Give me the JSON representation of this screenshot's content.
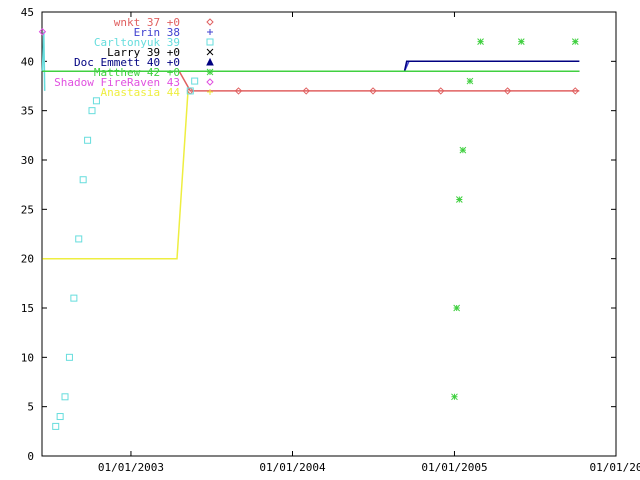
{
  "chart_data": {
    "type": "line",
    "title": "",
    "xlabel": "",
    "ylabel": "",
    "grid": false,
    "legend_position": "top-center",
    "ylim": [
      0,
      45
    ],
    "xlim": [
      "2002-06-14",
      "2006-01-01"
    ],
    "y_ticks": [
      0,
      5,
      10,
      15,
      20,
      25,
      30,
      35,
      40,
      45
    ],
    "x_ticks": [
      {
        "date": "2003-01-01",
        "label": "01/01/2003"
      },
      {
        "date": "2004-01-01",
        "label": "01/01/2004"
      },
      {
        "date": "2005-01-01",
        "label": "01/01/2005"
      },
      {
        "date": "2006-01-01",
        "label": "01/01/20"
      }
    ],
    "series": [
      {
        "name": "wnkt 37 +0",
        "color": "#e06060",
        "marker": "diamond",
        "points": [
          [
            "2002-06-15",
            39
          ],
          [
            "2003-04-20",
            39
          ],
          [
            "2003-05-15",
            37
          ],
          [
            "2005-10-10",
            37
          ]
        ],
        "markers": [
          [
            "2003-05-15",
            37
          ],
          [
            "2003-09-01",
            37
          ],
          [
            "2004-02-01",
            37
          ],
          [
            "2004-07-01",
            37
          ],
          [
            "2004-12-01",
            37
          ],
          [
            "2005-05-01",
            37
          ],
          [
            "2005-10-01",
            37
          ]
        ]
      },
      {
        "name": "Erin 38",
        "color": "#4040d0",
        "marker": "plus",
        "points": [
          [
            "2002-06-15",
            39
          ],
          [
            "2004-09-10",
            39
          ],
          [
            "2004-09-20",
            40
          ],
          [
            "2005-10-10",
            40
          ]
        ],
        "markers": []
      },
      {
        "name": "Carltonyuk 39",
        "color": "#66dddd",
        "marker": "square",
        "points": [
          [
            "2002-06-15",
            39
          ],
          [
            "2002-06-18",
            43
          ],
          [
            "2002-06-20",
            37
          ]
        ],
        "markers": [
          [
            "2002-07-15",
            3
          ],
          [
            "2002-07-25",
            4
          ],
          [
            "2002-08-05",
            6
          ],
          [
            "2002-08-15",
            10
          ],
          [
            "2002-08-25",
            16
          ],
          [
            "2002-09-05",
            22
          ],
          [
            "2002-09-15",
            28
          ],
          [
            "2002-09-25",
            32
          ],
          [
            "2002-10-05",
            35
          ],
          [
            "2002-10-15",
            36
          ],
          [
            "2003-05-15",
            37
          ],
          [
            "2003-05-25",
            38
          ]
        ]
      },
      {
        "name": "Larry 39 +0",
        "color": "#000000",
        "marker": "x",
        "points": [
          [
            "2002-06-15",
            39
          ],
          [
            "2005-10-10",
            39
          ]
        ],
        "markers": []
      },
      {
        "name": "Doc Emmett 40 +0",
        "color": "#000080",
        "marker": "triangle",
        "points": [
          [
            "2002-06-15",
            39
          ],
          [
            "2004-09-10",
            39
          ],
          [
            "2004-09-15",
            40
          ],
          [
            "2005-10-10",
            40
          ]
        ],
        "markers": []
      },
      {
        "name": "Matthew 42 +0",
        "color": "#40d040",
        "marker": "asterisk",
        "points": [
          [
            "2002-06-15",
            39
          ],
          [
            "2005-10-10",
            39
          ]
        ],
        "markers": [
          [
            "2005-01-01",
            6
          ],
          [
            "2005-01-06",
            15
          ],
          [
            "2005-01-12",
            26
          ],
          [
            "2005-01-20",
            31
          ],
          [
            "2005-02-05",
            38
          ],
          [
            "2005-03-01",
            42
          ],
          [
            "2005-06-01",
            42
          ],
          [
            "2005-10-01",
            42
          ]
        ]
      },
      {
        "name": "Shadow FireRaven 43",
        "color": "#e050e0",
        "marker": "diamond",
        "points": [
          [
            "2002-06-15",
            43
          ]
        ],
        "markers": [
          [
            "2002-06-15",
            43
          ]
        ]
      },
      {
        "name": "Anastasia 44",
        "color": "#eeee40",
        "marker": "plus",
        "points": [
          [
            "2002-06-15",
            20
          ],
          [
            "2003-04-15",
            20
          ],
          [
            "2003-05-10",
            37
          ]
        ],
        "markers": []
      }
    ]
  }
}
